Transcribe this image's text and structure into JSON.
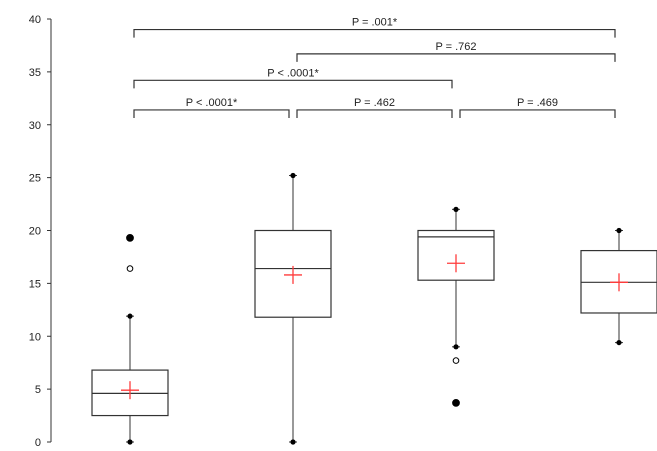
{
  "chart_data": {
    "type": "box",
    "title": "",
    "xlabel": "",
    "ylabel": "",
    "ylim": [
      0,
      40
    ],
    "yticks": [
      0,
      5,
      10,
      15,
      20,
      25,
      30,
      35,
      40
    ],
    "grid": false,
    "legend": "none",
    "colors": {
      "box": "#333333",
      "mean_marker": "#ff3b3b",
      "outlier": "#000000"
    },
    "groups": [
      {
        "min": 0,
        "q1": 2.5,
        "median": 4.6,
        "q3": 6.8,
        "max": 11.9,
        "mean": 4.9,
        "outliers": [
          {
            "value": 16.4,
            "filled": false
          },
          {
            "value": 19.3,
            "filled": true
          }
        ]
      },
      {
        "min": 0,
        "q1": 11.8,
        "median": 16.4,
        "q3": 20.0,
        "max": 25.2,
        "mean": 15.8,
        "outliers": []
      },
      {
        "min": 9.0,
        "q1": 15.3,
        "median": 19.4,
        "q3": 20.0,
        "max": 22.0,
        "mean": 16.9,
        "outliers": [
          {
            "value": 7.7,
            "filled": false
          },
          {
            "value": 3.7,
            "filled": true
          }
        ]
      },
      {
        "min": 9.4,
        "q1": 12.2,
        "median": 15.1,
        "q3": 18.1,
        "max": 20.0,
        "mean": 15.1,
        "outliers": []
      }
    ],
    "comparisons": [
      {
        "from": 0,
        "to": 1,
        "label": "P < .0001*",
        "y": 31.4
      },
      {
        "from": 1,
        "to": 2,
        "label": "P = .462",
        "y": 31.4
      },
      {
        "from": 2,
        "to": 3,
        "label": "P = .469",
        "y": 31.4
      },
      {
        "from": 0,
        "to": 2,
        "label": "P < .0001*",
        "y": 34.2
      },
      {
        "from": 1,
        "to": 3,
        "label": "P = .762",
        "y": 36.7
      },
      {
        "from": 0,
        "to": 3,
        "label": "P = .001*",
        "y": 39.0
      }
    ]
  }
}
